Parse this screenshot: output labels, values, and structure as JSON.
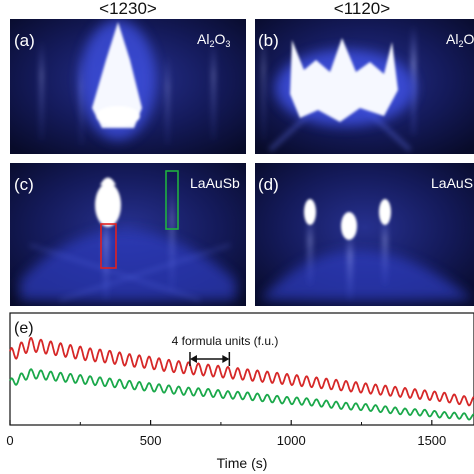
{
  "header": {
    "left_direction": "<1230>",
    "right_direction": "<1120>"
  },
  "panels": [
    {
      "letter": "(a)",
      "material_main": "Al",
      "material_sub1": "2",
      "material_mid": "O",
      "material_sub2": "3"
    },
    {
      "letter": "(b)",
      "material_main": "Al",
      "material_sub1": "2",
      "material_mid": "O",
      "material_sub2": ""
    },
    {
      "letter": "(c)",
      "material": "LaAuSb"
    },
    {
      "letter": "(d)",
      "material": "LaAuS"
    }
  ],
  "colors": {
    "rheed_background": "#0b1035",
    "rheed_glow": "#3b4fd6",
    "red_trace": "#d62828",
    "green_trace": "#1aa84a",
    "red_box": "#e02020",
    "green_box": "#20b040"
  },
  "chart_data": {
    "type": "line",
    "panel_label": "(e)",
    "annotation": "4 formula units (f.u.)",
    "annotation_range": [
      640,
      780
    ],
    "xlabel": "Time (s)",
    "xlim": [
      0,
      1650
    ],
    "xticks": [
      0,
      500,
      1000,
      1500
    ],
    "ylim": [
      0,
      1
    ],
    "period_s": 35,
    "series": [
      {
        "color": "#d62828",
        "x": [
          0,
          70,
          140,
          210,
          280,
          350,
          420,
          490,
          560,
          630,
          700,
          770,
          840,
          910,
          980,
          1050,
          1120,
          1190,
          1260,
          1330,
          1400,
          1470,
          1540,
          1610,
          1650
        ],
        "y": [
          0.62,
          0.72,
          0.69,
          0.66,
          0.63,
          0.61,
          0.58,
          0.56,
          0.53,
          0.51,
          0.49,
          0.47,
          0.45,
          0.43,
          0.41,
          0.39,
          0.37,
          0.35,
          0.33,
          0.31,
          0.29,
          0.27,
          0.25,
          0.22,
          0.21
        ],
        "amplitude": 0.06
      },
      {
        "color": "#1aa84a",
        "x": [
          0,
          70,
          140,
          210,
          280,
          350,
          420,
          490,
          560,
          630,
          700,
          770,
          840,
          910,
          980,
          1050,
          1120,
          1190,
          1260,
          1330,
          1400,
          1470,
          1540,
          1610,
          1650
        ],
        "y": [
          0.37,
          0.46,
          0.44,
          0.42,
          0.4,
          0.38,
          0.36,
          0.34,
          0.32,
          0.3,
          0.29,
          0.27,
          0.26,
          0.24,
          0.22,
          0.21,
          0.19,
          0.17,
          0.16,
          0.14,
          0.12,
          0.11,
          0.09,
          0.08,
          0.07
        ],
        "amplitude": 0.04
      }
    ]
  }
}
